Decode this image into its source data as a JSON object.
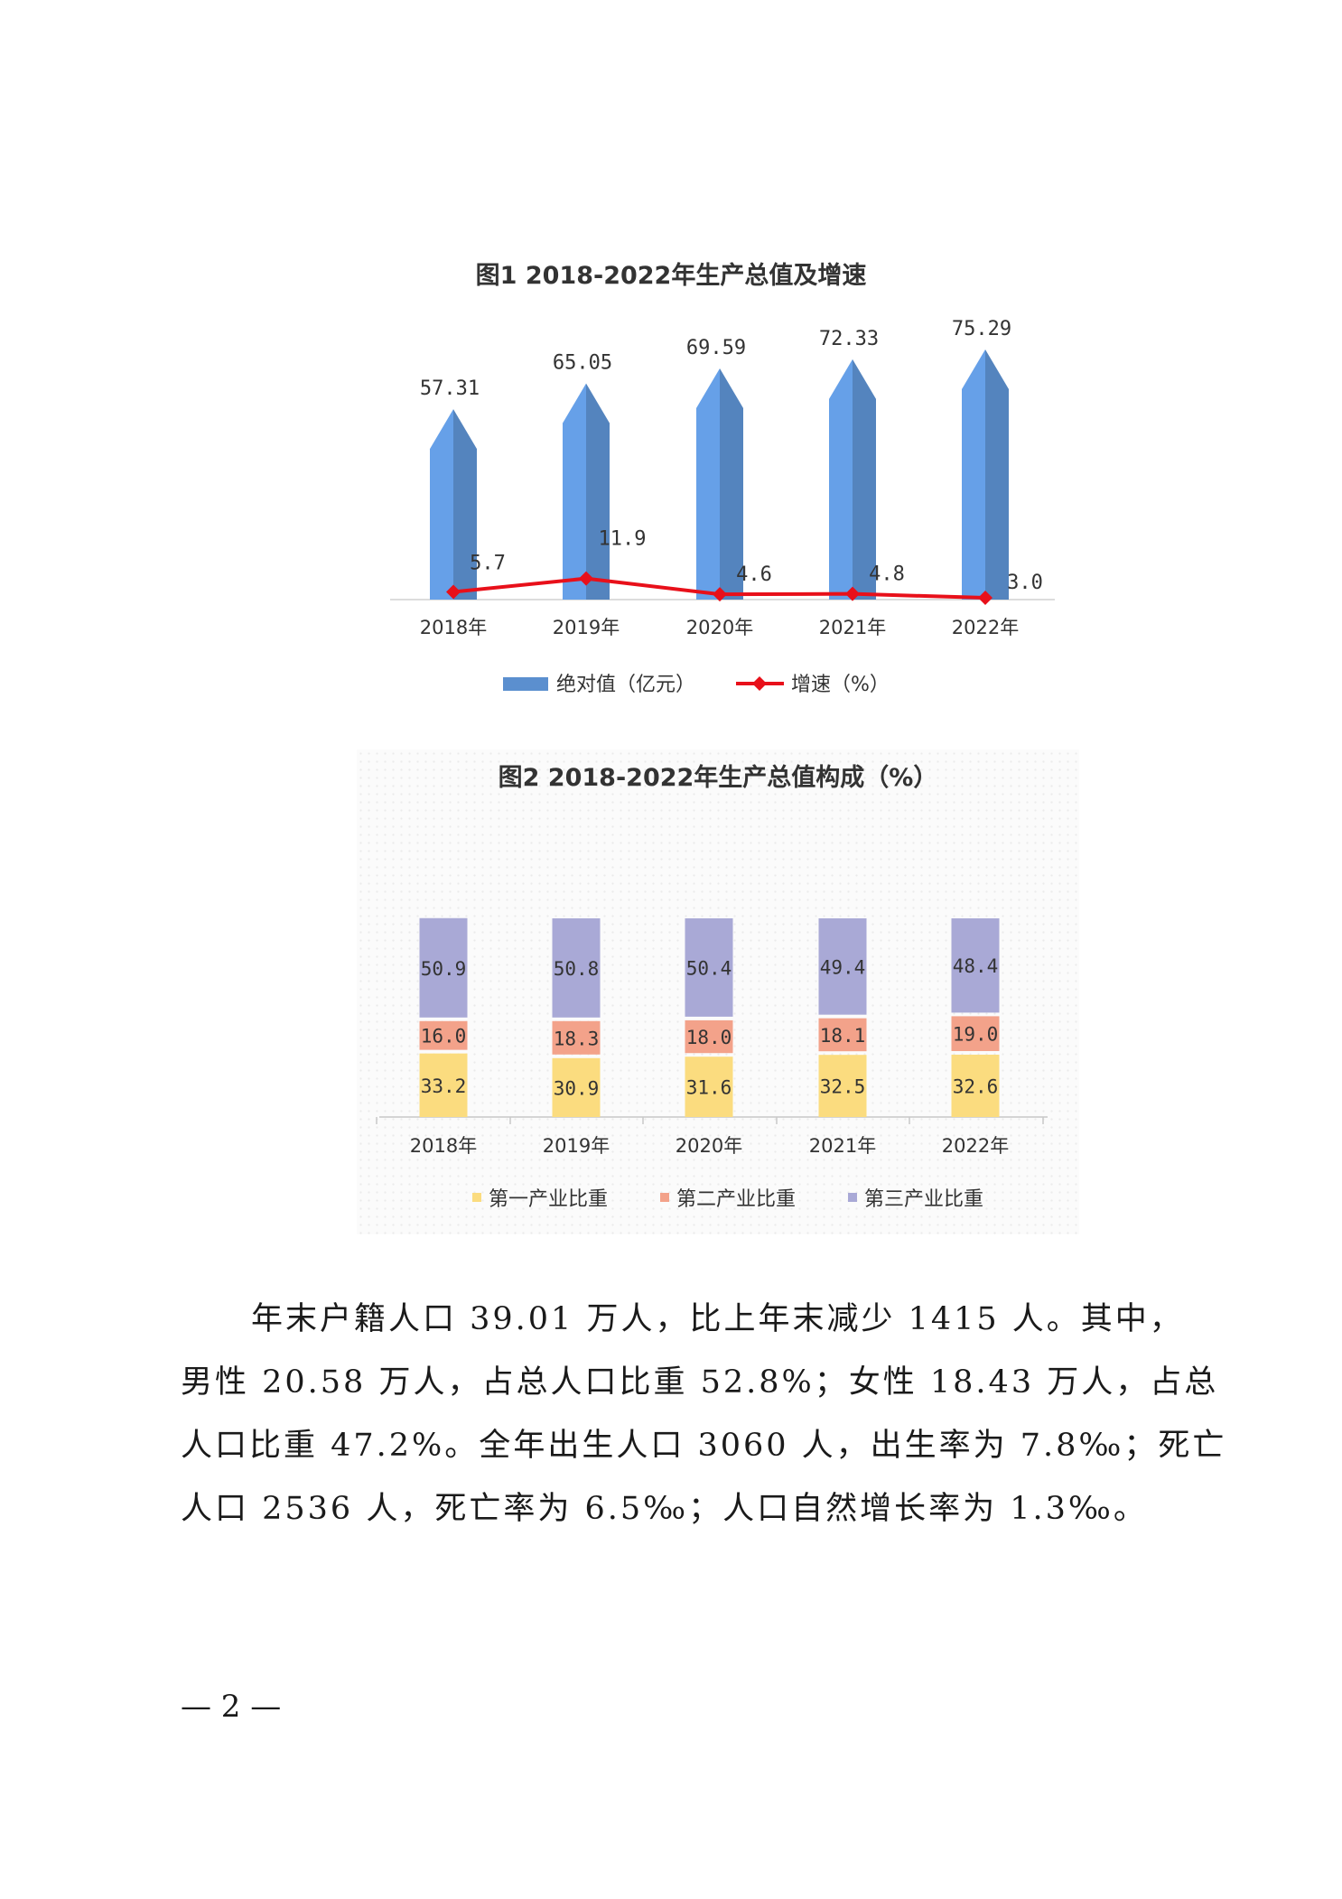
{
  "chart_data": [
    {
      "type": "bar+line",
      "title": "图1    2018-2022年生产总值及增速",
      "categories": [
        "2018年",
        "2019年",
        "2020年",
        "2021年",
        "2022年"
      ],
      "series": [
        {
          "name": "绝对值（亿元）",
          "type": "bar",
          "values": [
            57.31,
            65.05,
            69.59,
            72.33,
            75.29
          ],
          "labels": [
            "57.31",
            "65.05",
            "69.59",
            "72.33",
            "75.29"
          ],
          "color": "#5b8fcf"
        },
        {
          "name": "增速（%）",
          "type": "line",
          "values": [
            5.7,
            11.9,
            4.6,
            4.8,
            3.0
          ],
          "labels": [
            "5.7",
            "11.9",
            "4.6",
            "4.8",
            "3.0"
          ],
          "color": "#e8101a"
        }
      ],
      "legend": "bottom"
    },
    {
      "type": "stacked-bar",
      "title": "图2      2018-2022年生产总值构成（%）",
      "categories": [
        "2018年",
        "2019年",
        "2020年",
        "2021年",
        "2022年"
      ],
      "series": [
        {
          "name": "第一产业比重",
          "values": [
            33.2,
            30.9,
            31.6,
            32.5,
            32.6
          ],
          "labels": [
            "33.2",
            "30.9",
            "31.6",
            "32.5",
            "32.6"
          ],
          "color": "#fbdc7f"
        },
        {
          "name": "第二产业比重",
          "values": [
            16.0,
            18.3,
            18.0,
            18.1,
            19.0
          ],
          "labels": [
            "16.0",
            "18.3",
            "18.0",
            "18.1",
            "19.0"
          ],
          "color": "#f3a28a"
        },
        {
          "name": "第三产业比重",
          "values": [
            50.9,
            50.8,
            50.4,
            49.4,
            48.4
          ],
          "labels": [
            "50.9",
            "50.8",
            "50.4",
            "49.4",
            "48.4"
          ],
          "color": "#a9a9d6"
        }
      ],
      "legend": "bottom"
    }
  ],
  "paragraph": {
    "lines": [
      "年末户籍人口 39.01 万人，比上年末减少 1415 人。其中，",
      "男性 20.58 万人，占总人口比重 52.8%；女性 18.43 万人，占总",
      "人口比重 47.2%。全年出生人口 3060 人，出生率为 7.8‰；死亡",
      "人口 2536 人，死亡率为 6.5‰；人口自然增长率为 1.3‰。"
    ]
  },
  "page_number": "— 2 —"
}
